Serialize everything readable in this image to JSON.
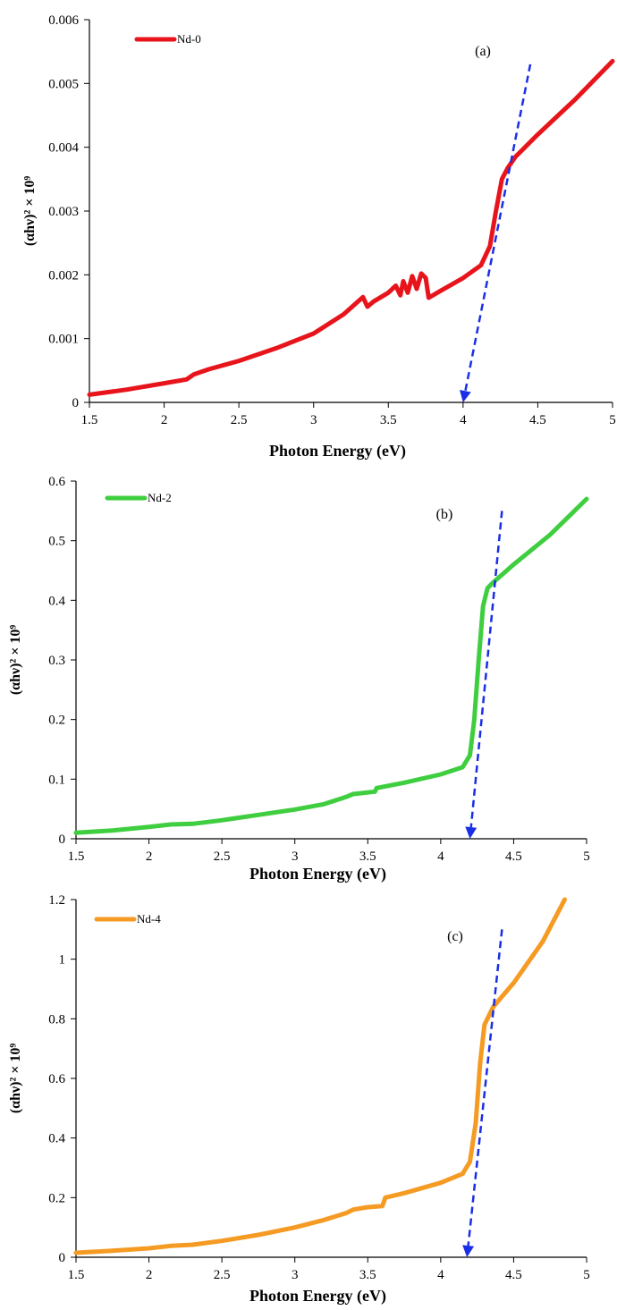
{
  "chart_data": [
    {
      "type": "line",
      "panel_label": "(a)",
      "xlabel": "Photon Energy (eV)",
      "ylabel": "(αhν)² × 10⁹",
      "xlim": [
        1.5,
        5
      ],
      "ylim": [
        0,
        0.006
      ],
      "xticks": [
        "1.5",
        "2",
        "2.5",
        "3",
        "3.5",
        "4",
        "4.5",
        "5"
      ],
      "yticks": [
        "0",
        "0.001",
        "0.002",
        "0.003",
        "0.004",
        "0.005",
        "0.006"
      ],
      "grid": false,
      "legend_position": "top-left",
      "series": [
        {
          "name": "Nd-0",
          "color": "#e8141b",
          "x": [
            1.5,
            1.75,
            2.0,
            2.15,
            2.2,
            2.3,
            2.5,
            2.75,
            3.0,
            3.2,
            3.33,
            3.36,
            3.4,
            3.5,
            3.55,
            3.58,
            3.6,
            3.63,
            3.66,
            3.69,
            3.72,
            3.75,
            3.77,
            3.85,
            4.0,
            4.12,
            4.18,
            4.22,
            4.26,
            4.3,
            4.35,
            4.5,
            4.75,
            5.0
          ],
          "y": [
            0.00012,
            0.0002,
            0.0003,
            0.00036,
            0.00044,
            0.00052,
            0.00065,
            0.00085,
            0.00108,
            0.00138,
            0.00165,
            0.0015,
            0.00158,
            0.00172,
            0.00183,
            0.00168,
            0.0019,
            0.00172,
            0.00198,
            0.00178,
            0.00202,
            0.00195,
            0.00164,
            0.00175,
            0.00195,
            0.00215,
            0.00245,
            0.003,
            0.0035,
            0.00368,
            0.00385,
            0.0042,
            0.00475,
            0.00535
          ]
        }
      ],
      "tangent": {
        "color": "#1a2ee6",
        "x": [
          4.0,
          4.45
        ],
        "y": [
          0,
          0.0053
        ]
      }
    },
    {
      "type": "line",
      "panel_label": "(b)",
      "xlabel": "Photon Energy (eV)",
      "ylabel": "(αhν)² × 10⁹",
      "xlim": [
        1.5,
        5
      ],
      "ylim": [
        0,
        0.6
      ],
      "xticks": [
        "1.5",
        "2",
        "2.5",
        "3",
        "3.5",
        "4",
        "4.5",
        "5"
      ],
      "yticks": [
        "0",
        "0.1",
        "0.2",
        "0.3",
        "0.4",
        "0.5",
        "0.6"
      ],
      "grid": false,
      "legend_position": "top-left",
      "series": [
        {
          "name": "Nd-2",
          "color": "#3fce3f",
          "x": [
            1.5,
            1.75,
            2.0,
            2.15,
            2.3,
            2.5,
            2.75,
            3.0,
            3.2,
            3.35,
            3.4,
            3.55,
            3.56,
            3.75,
            4.0,
            4.15,
            4.2,
            4.23,
            4.26,
            4.29,
            4.32,
            4.35,
            4.5,
            4.75,
            5.0
          ],
          "y": [
            0.01,
            0.014,
            0.02,
            0.024,
            0.025,
            0.031,
            0.04,
            0.049,
            0.058,
            0.07,
            0.075,
            0.079,
            0.085,
            0.094,
            0.108,
            0.12,
            0.14,
            0.2,
            0.3,
            0.39,
            0.42,
            0.428,
            0.46,
            0.51,
            0.57
          ]
        }
      ],
      "tangent": {
        "color": "#1a2ee6",
        "x": [
          4.2,
          4.42
        ],
        "y": [
          0,
          0.55
        ]
      }
    },
    {
      "type": "line",
      "panel_label": "(c)",
      "xlabel": "Photon Energy (eV)",
      "ylabel": "(αhν)² × 10⁹",
      "xlim": [
        1.5,
        5
      ],
      "ylim": [
        0,
        1.2
      ],
      "xticks": [
        "1.5",
        "2",
        "2.5",
        "3",
        "3.5",
        "4",
        "4.5",
        "5"
      ],
      "yticks": [
        "0",
        "0.2",
        "0.4",
        "0.6",
        "0.8",
        "1",
        "1.2"
      ],
      "grid": false,
      "legend_position": "top-left",
      "series": [
        {
          "name": "Nd-4",
          "color": "#f59a23",
          "x": [
            1.5,
            1.75,
            2.0,
            2.15,
            2.3,
            2.5,
            2.75,
            3.0,
            3.2,
            3.35,
            3.4,
            3.5,
            3.6,
            3.62,
            3.75,
            4.0,
            4.15,
            4.2,
            4.24,
            4.27,
            4.3,
            4.33,
            4.36,
            4.5,
            4.7,
            4.85
          ],
          "y": [
            0.015,
            0.022,
            0.03,
            0.038,
            0.042,
            0.055,
            0.075,
            0.1,
            0.125,
            0.148,
            0.16,
            0.168,
            0.172,
            0.2,
            0.215,
            0.25,
            0.28,
            0.32,
            0.45,
            0.65,
            0.78,
            0.81,
            0.84,
            0.92,
            1.06,
            1.2
          ]
        }
      ],
      "tangent": {
        "color": "#1a2ee6",
        "x": [
          4.18,
          4.42
        ],
        "y": [
          0,
          1.1
        ]
      }
    }
  ]
}
